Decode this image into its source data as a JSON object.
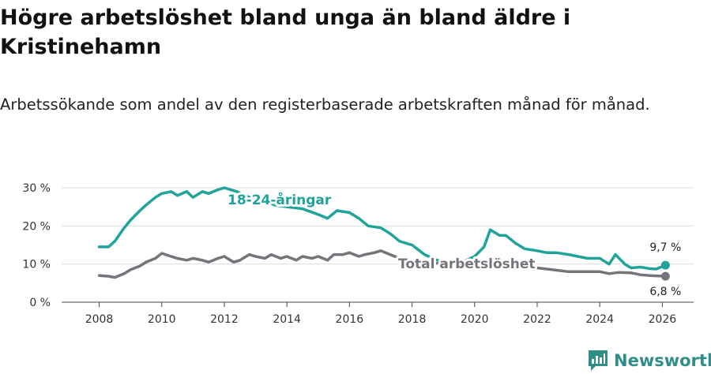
{
  "header": {
    "title": "Högre arbetslöshet bland unga än bland äldre i Kristinehamn",
    "subtitle": "Arbetssökande som andel av den registerbaserade arbetskraften månad för månad."
  },
  "brand": {
    "name": "Newsworthy",
    "icon": "newsworthy-logo-icon",
    "color": "#2f8f88"
  },
  "colors": {
    "youth": "#1fa39a",
    "total": "#76737b",
    "grid": "#dddddd",
    "axis": "#444444"
  },
  "chart_data": {
    "type": "line",
    "title": "Högre arbetslöshet bland unga än bland äldre i Kristinehamn",
    "xlabel": "",
    "ylabel": "",
    "xlim": [
      2006.8,
      2027.0
    ],
    "ylim": [
      0,
      30
    ],
    "x_ticks": [
      2008,
      2010,
      2012,
      2014,
      2016,
      2018,
      2020,
      2022,
      2024,
      2026
    ],
    "x_tick_labels": [
      "2008",
      "2010",
      "2012",
      "2014",
      "2016",
      "2018",
      "2020",
      "2022",
      "2024",
      "2026"
    ],
    "y_ticks": [
      0,
      10,
      20,
      30
    ],
    "y_tick_labels": [
      "0 %",
      "10 %",
      "20 %",
      "30 %"
    ],
    "grid": true,
    "series": [
      {
        "name": "18-24-åringar",
        "label": "18-24-åringar",
        "color": "#1fa39a",
        "last_label": "9,7 %",
        "x": [
          2008.0,
          2008.3,
          2008.5,
          2008.8,
          2009.0,
          2009.3,
          2009.5,
          2009.8,
          2010.0,
          2010.3,
          2010.5,
          2010.8,
          2011.0,
          2011.3,
          2011.5,
          2011.8,
          2012.0,
          2012.4,
          2012.8,
          2013.2,
          2013.6,
          2014.0,
          2014.5,
          2015.0,
          2015.3,
          2015.6,
          2016.0,
          2016.3,
          2016.6,
          2017.0,
          2017.3,
          2017.6,
          2018.0,
          2018.4,
          2018.8,
          2019.2,
          2019.6,
          2020.0,
          2020.3,
          2020.5,
          2020.8,
          2021.0,
          2021.3,
          2021.6,
          2022.0,
          2022.3,
          2022.6,
          2023.0,
          2023.3,
          2023.6,
          2024.0,
          2024.3,
          2024.5,
          2024.8,
          2025.0,
          2025.3,
          2025.6,
          2025.8,
          2026.1
        ],
        "y": [
          14.5,
          14.5,
          16.0,
          19.5,
          21.5,
          24.0,
          25.5,
          27.5,
          28.5,
          29.0,
          28.0,
          29.0,
          27.5,
          29.0,
          28.5,
          29.5,
          30.0,
          29.0,
          27.5,
          27.0,
          25.5,
          25.0,
          24.5,
          23.0,
          22.0,
          24.0,
          23.5,
          22.0,
          20.0,
          19.5,
          18.0,
          16.0,
          15.0,
          12.5,
          11.0,
          10.5,
          10.5,
          12.0,
          14.5,
          19.0,
          17.5,
          17.5,
          15.5,
          14.0,
          13.5,
          13.0,
          13.0,
          12.5,
          12.0,
          11.5,
          11.5,
          10.0,
          12.5,
          10.0,
          9.0,
          9.2,
          8.8,
          8.7,
          9.7
        ]
      },
      {
        "name": "Total arbetslöshet",
        "label": "Total arbetslöshet",
        "color": "#76737b",
        "last_label": "6,8 %",
        "x": [
          2008.0,
          2008.3,
          2008.5,
          2008.8,
          2009.0,
          2009.3,
          2009.5,
          2009.8,
          2010.0,
          2010.3,
          2010.5,
          2010.8,
          2011.0,
          2011.3,
          2011.5,
          2011.8,
          2012.0,
          2012.3,
          2012.5,
          2012.8,
          2013.0,
          2013.3,
          2013.5,
          2013.8,
          2014.0,
          2014.3,
          2014.5,
          2014.8,
          2015.0,
          2015.3,
          2015.5,
          2015.8,
          2016.0,
          2016.3,
          2016.5,
          2016.8,
          2017.0,
          2017.3,
          2017.6,
          2018.0,
          2018.5,
          2019.0,
          2019.5,
          2020.0,
          2020.3,
          2020.6,
          2021.0,
          2021.5,
          2022.0,
          2022.5,
          2023.0,
          2023.5,
          2024.0,
          2024.3,
          2024.6,
          2025.0,
          2025.3,
          2025.6,
          2026.1
        ],
        "y": [
          7.0,
          6.8,
          6.5,
          7.5,
          8.5,
          9.5,
          10.5,
          11.5,
          12.8,
          12.0,
          11.5,
          11.0,
          11.5,
          11.0,
          10.5,
          11.5,
          12.0,
          10.5,
          11.0,
          12.5,
          12.0,
          11.5,
          12.5,
          11.5,
          12.0,
          11.0,
          12.0,
          11.5,
          12.0,
          11.0,
          12.5,
          12.5,
          13.0,
          12.0,
          12.5,
          13.0,
          13.5,
          12.5,
          11.5,
          11.0,
          10.5,
          10.0,
          10.0,
          10.5,
          11.0,
          10.5,
          10.0,
          9.5,
          9.0,
          8.5,
          8.0,
          8.0,
          8.0,
          7.5,
          7.8,
          7.7,
          7.2,
          7.0,
          6.8
        ]
      }
    ]
  }
}
